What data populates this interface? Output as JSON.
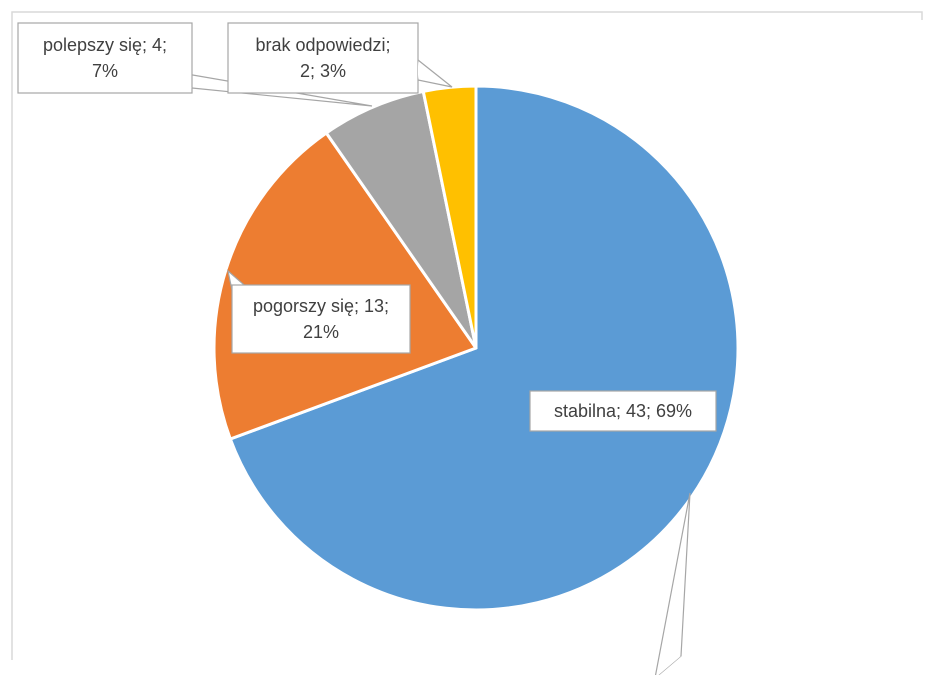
{
  "chart_data": {
    "type": "pie",
    "title": "",
    "legend": "none",
    "start_angle_deg": 0,
    "direction": "clockwise",
    "slices": [
      {
        "name": "stabilna",
        "value": 43,
        "percent": "69%",
        "color": "#5b9bd5",
        "label_lines": [
          "stabilna; 43; 69%"
        ]
      },
      {
        "name": "pogorszy się",
        "value": 13,
        "percent": "21%",
        "color": "#ed7d31",
        "label_lines": [
          "pogorszy się; 13;",
          "21%"
        ]
      },
      {
        "name": "polepszy się",
        "value": 4,
        "percent": "7%",
        "color": "#a5a5a5",
        "label_lines": [
          "polepszy się; 4;",
          "7%"
        ]
      },
      {
        "name": "brak odpowiedzi",
        "value": 2,
        "percent": "3%",
        "color": "#ffc000",
        "label_lines": [
          "brak odpowiedzi;",
          "2; 3%"
        ]
      }
    ]
  }
}
